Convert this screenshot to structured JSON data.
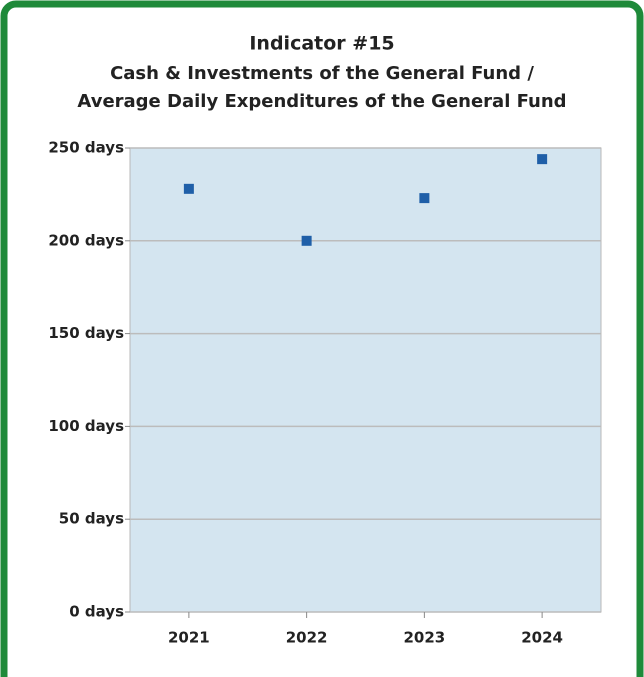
{
  "chart_data": {
    "type": "line",
    "title": "Indicator #15",
    "subtitle": [
      "Cash & Investments of the General Fund /",
      "Average Daily Expenditures of the General Fund"
    ],
    "categories": [
      "2021",
      "2022",
      "2023",
      "2024"
    ],
    "series": [
      {
        "name": null,
        "color": "#1f5fa8",
        "values": [
          228,
          200,
          223,
          244
        ]
      }
    ],
    "ylim": [
      0,
      250
    ],
    "yticks": [
      {
        "value": 0,
        "label": "0 days"
      },
      {
        "value": 50,
        "label": "50 days"
      },
      {
        "value": 100,
        "label": "100 days"
      },
      {
        "value": 150,
        "label": "150 days"
      },
      {
        "value": 200,
        "label": "200 days"
      },
      {
        "value": 250,
        "label": "250 days"
      }
    ],
    "grid": true
  }
}
